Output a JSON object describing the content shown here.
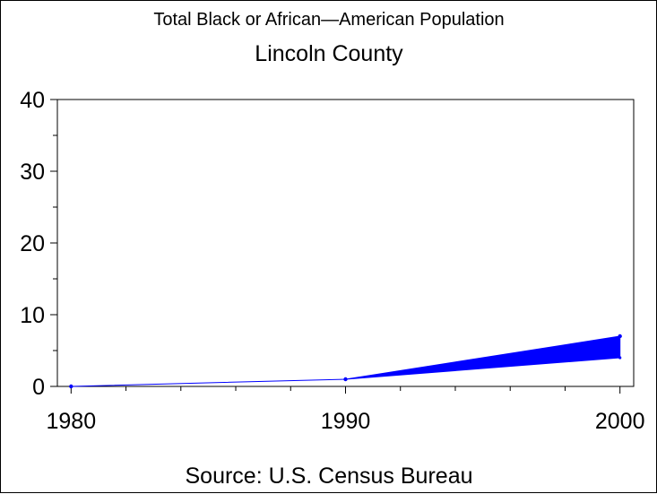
{
  "chart_data": {
    "type": "area",
    "title": "Total Black or African—American Population",
    "subtitle": "Lincoln County",
    "source": "Source: U.S. Census Bureau",
    "xlabel": "",
    "ylabel": "",
    "x_ticks": [
      "1980",
      "1990",
      "2000"
    ],
    "y_ticks": [
      "0",
      "10",
      "20",
      "30",
      "40"
    ],
    "xlim": [
      1979.5,
      2000.5
    ],
    "ylim": [
      0,
      40
    ],
    "grid": false,
    "series": [
      {
        "color": "#0000ff",
        "upper": [
          {
            "x": 1980,
            "y": 0
          },
          {
            "x": 1990,
            "y": 1
          },
          {
            "x": 2000,
            "y": 7
          }
        ],
        "lower": [
          {
            "x": 1980,
            "y": 0
          },
          {
            "x": 1990,
            "y": 1
          },
          {
            "x": 2000,
            "y": 4
          }
        ]
      }
    ]
  }
}
